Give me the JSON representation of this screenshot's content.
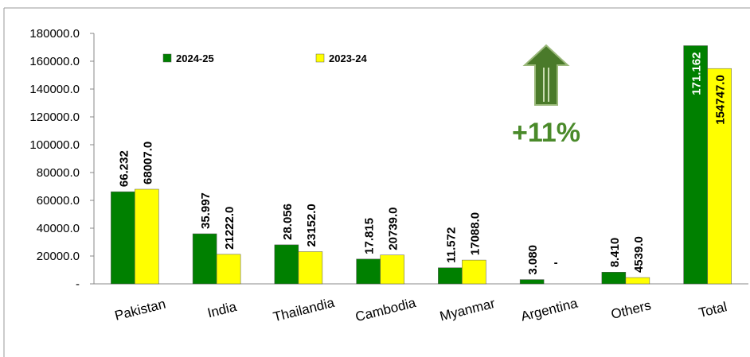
{
  "chart_data": {
    "type": "bar",
    "categories": [
      "Pakistan",
      "India",
      "Thailandia",
      "Cambodia",
      "Myanmar",
      "Argentina",
      "Others",
      "Total"
    ],
    "series": [
      {
        "name": "2024-25",
        "color": "#008000",
        "values": [
          66232,
          35997,
          28056,
          17815,
          11572,
          3080,
          8410,
          171162
        ],
        "value_labels": [
          "66.232",
          "35.997",
          "28.056",
          "17.815",
          "11.572",
          "3.080",
          "8.410",
          "171.162"
        ]
      },
      {
        "name": "2023-24",
        "color": "#ffff00",
        "values": [
          68007,
          21222,
          23152,
          20739,
          17088,
          null,
          4539,
          154747
        ],
        "value_labels": [
          "68007.0",
          "21222.0",
          "23152.0",
          "20739.0",
          "17088.0",
          "-",
          "4539.0",
          "154747.0"
        ]
      }
    ],
    "ylim": [
      0,
      180000
    ],
    "yticks": [
      {
        "value": 0,
        "label": "-"
      },
      {
        "value": 20000,
        "label": "20000.0"
      },
      {
        "value": 40000,
        "label": "40000.0"
      },
      {
        "value": 60000,
        "label": "60000.0"
      },
      {
        "value": 80000,
        "label": "80000.0"
      },
      {
        "value": 100000,
        "label": "100000.0"
      },
      {
        "value": 120000,
        "label": "120000.0"
      },
      {
        "value": 140000,
        "label": "140000.0"
      },
      {
        "value": 160000,
        "label": "160000.0"
      },
      {
        "value": 180000,
        "label": "180000.0"
      }
    ],
    "annotation": "+11%",
    "legend": "top"
  }
}
